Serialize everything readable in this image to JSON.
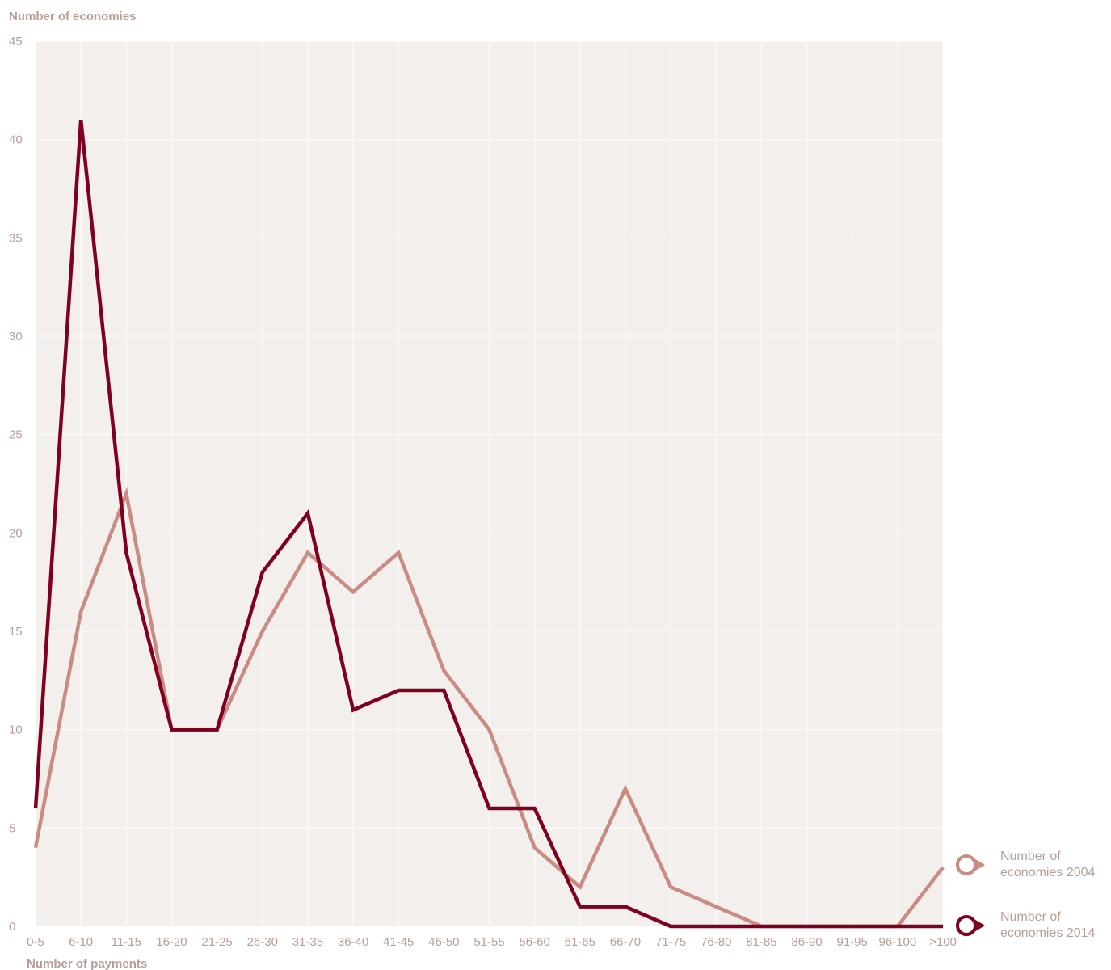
{
  "chart_data": {
    "type": "line",
    "ylabel": "Number of economies",
    "xlabel": "Number of payments",
    "ylim": [
      0,
      45
    ],
    "yticks": [
      0,
      5,
      10,
      15,
      20,
      25,
      30,
      35,
      40,
      45
    ],
    "grid": true,
    "legend_position": "right",
    "categories": [
      "0-5",
      "6-10",
      "11-15",
      "16-20",
      "21-25",
      "26-30",
      "31-35",
      "36-40",
      "41-45",
      "46-50",
      "51-55",
      "56-60",
      "61-65",
      "66-70",
      "71-75",
      "76-80",
      "81-85",
      "86-90",
      "91-95",
      "96-100",
      ">100"
    ],
    "series": [
      {
        "name": "Number of economies 2004",
        "legend_lines": [
          "Number of",
          "economies 2004"
        ],
        "color": "#c98b82",
        "values": [
          4,
          16,
          22,
          10,
          10,
          15,
          19,
          17,
          19,
          13,
          10,
          4,
          2,
          7,
          2,
          1,
          0,
          0,
          0,
          0,
          3
        ]
      },
      {
        "name": "Number of economies 2014",
        "legend_lines": [
          "Number of",
          "economies 2014"
        ],
        "color": "#800020",
        "values": [
          6,
          41,
          19,
          10,
          10,
          18,
          21,
          11,
          12,
          12,
          6,
          6,
          1,
          1,
          0,
          0,
          0,
          0,
          0,
          0,
          0
        ]
      }
    ]
  },
  "colors": {
    "plot_background": "#f3efec",
    "grid": "#ffffff",
    "text": "#b59f97"
  }
}
